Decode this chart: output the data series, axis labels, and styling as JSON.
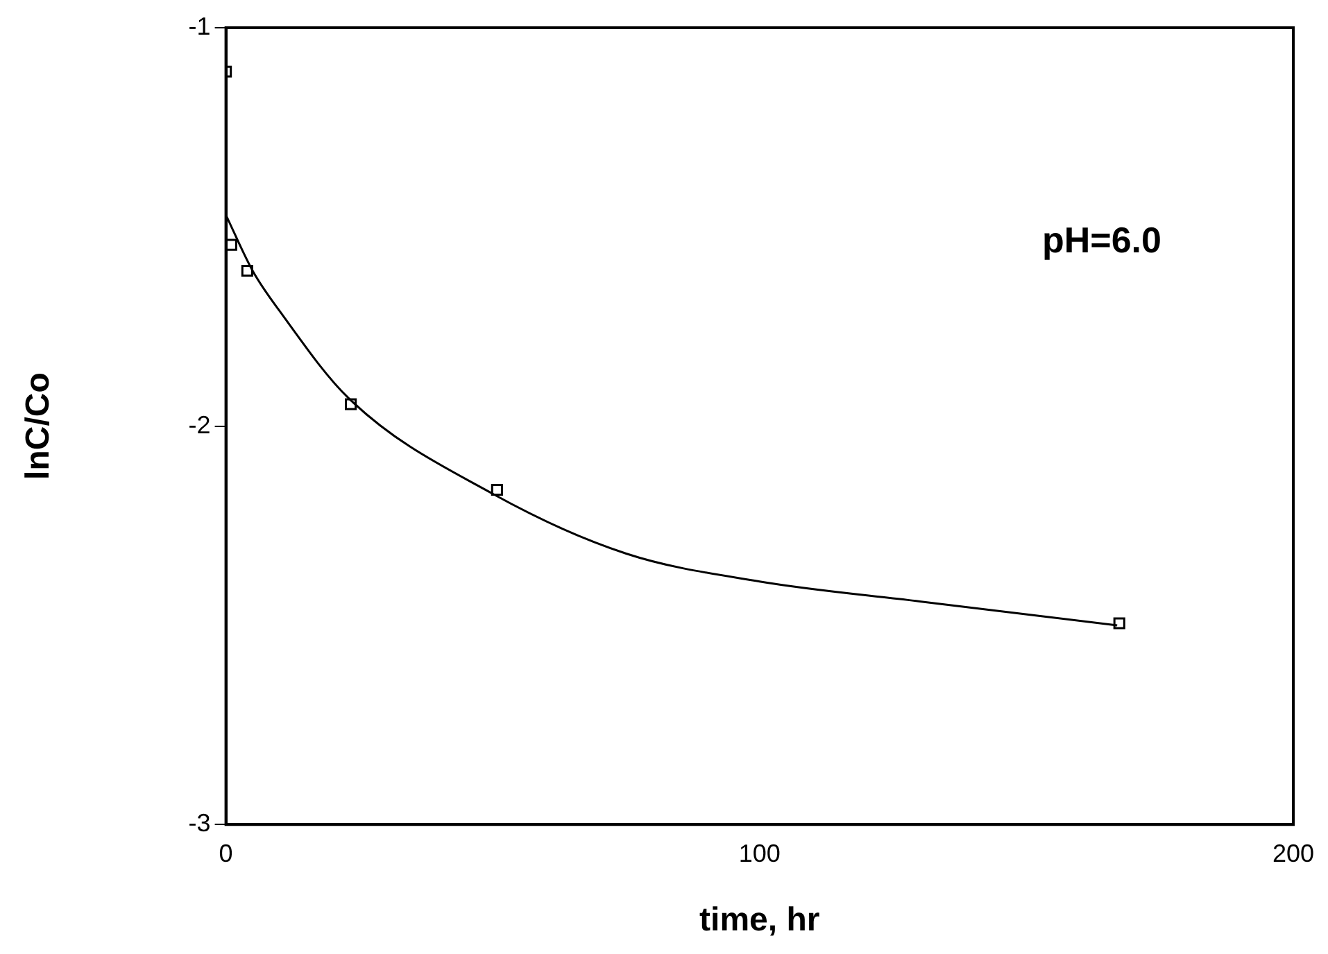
{
  "chart_data": {
    "type": "scatter",
    "xlabel": "time, hr",
    "ylabel": "lnC/Co",
    "xlim": [
      0,
      200
    ],
    "xticks": [
      0,
      100,
      200
    ],
    "ylim": [
      -3,
      -1
    ],
    "yticks": [
      -1,
      -2,
      -3
    ],
    "grid": false,
    "legend": false,
    "marker": "square",
    "annotations": [
      "pH=6.0"
    ],
    "series": [
      {
        "color": "#000000",
        "x": [
          0,
          1,
          4,
          23.4,
          50.8,
          167.4
        ],
        "values": [
          -1.11,
          -1.545,
          -1.61,
          -1.945,
          -2.16,
          -2.495
        ]
      },
      {
        "type": "line",
        "color": "#000000",
        "marker": "none",
        "x": [
          0,
          5,
          10,
          23,
          50,
          75,
          100,
          130,
          167
        ],
        "values": [
          -1.47,
          -1.61,
          -1.71,
          -1.93,
          -2.17,
          -2.32,
          -2.39,
          -2.44,
          -2.5
        ]
      }
    ]
  }
}
